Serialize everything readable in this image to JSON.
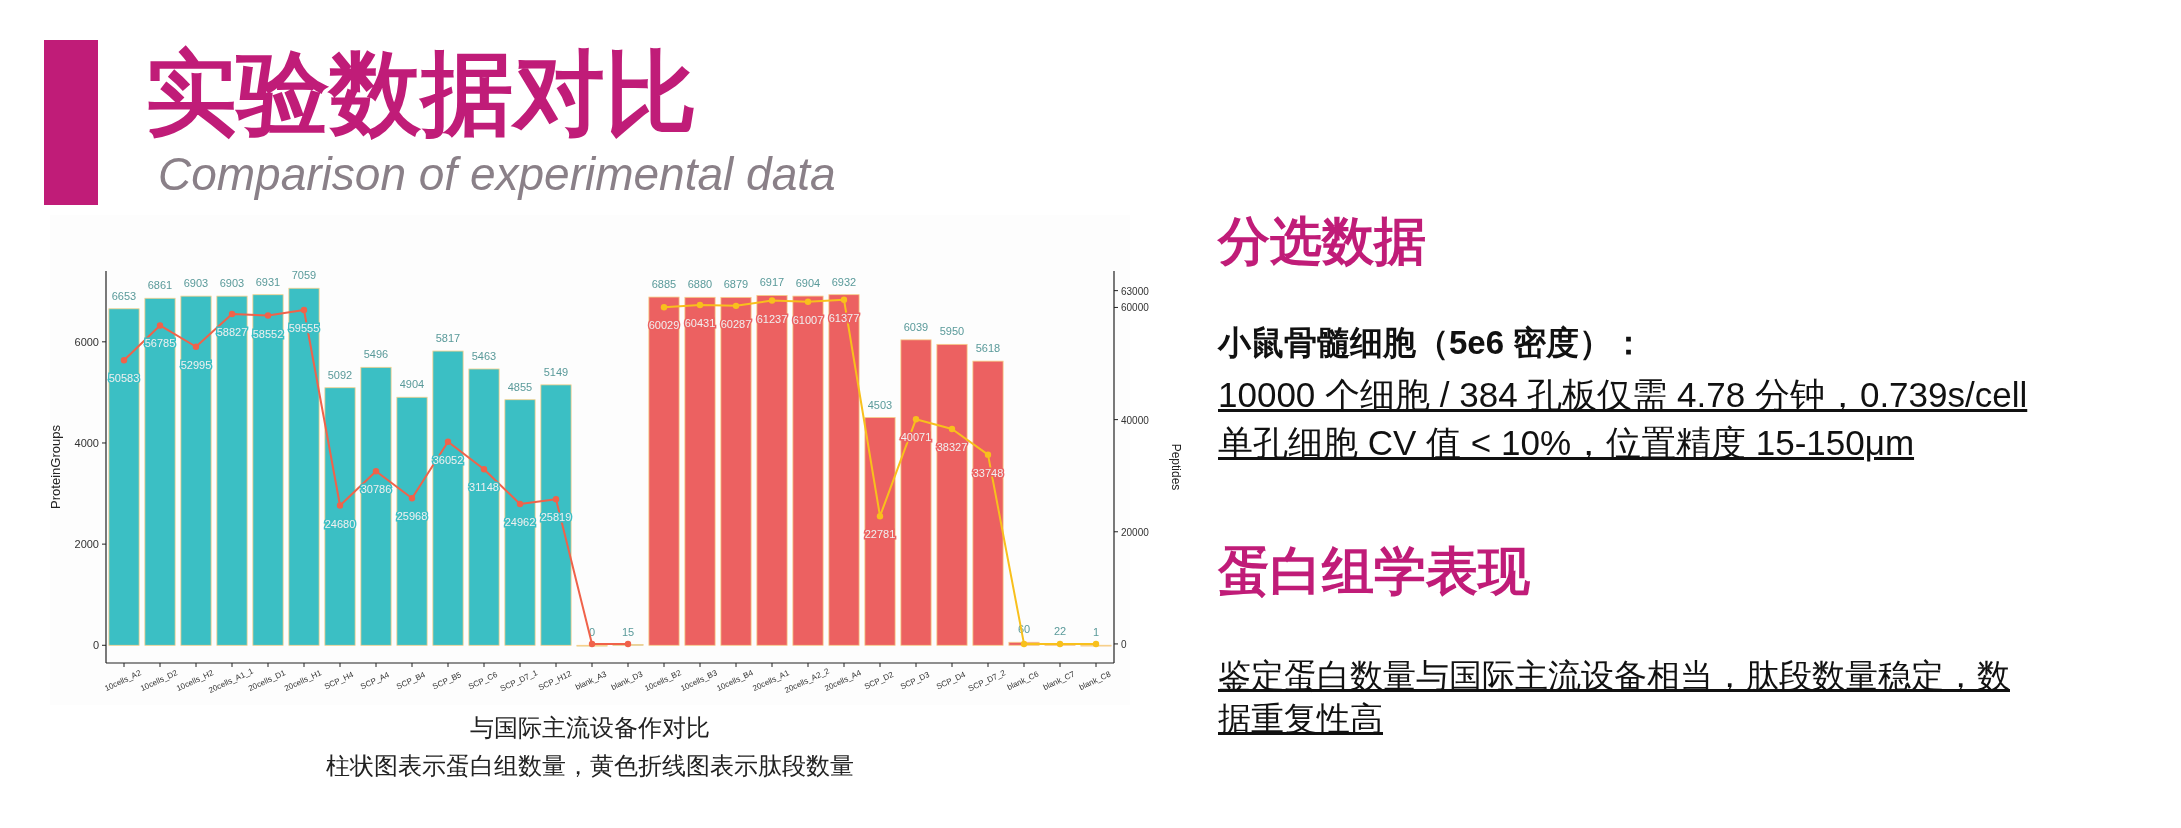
{
  "chart_data": {
    "type": "bar",
    "title": "实验数据对比",
    "subtitle": "Comparison of experimental data",
    "ylabel": "ProteinGroups",
    "y2label": "Peptides",
    "categories": [
      "10cells_A2",
      "10cells_D2",
      "10cells_H2",
      "20cells_A1_1",
      "20cells_D1",
      "20cells_H1",
      "SCP_H4",
      "SCP_A4",
      "SCP_B4",
      "SCP_B5",
      "SCP_C6",
      "SCP_D7_1",
      "SCP_H12",
      "blank_A3",
      "blank_D3",
      "10cells_B2",
      "10cells_B3",
      "10cells_B4",
      "20cells_A1",
      "20cells_A2_2",
      "20cells_A4",
      "SCP_D2",
      "SCP_D3",
      "SCP_D4",
      "SCP_D7_2",
      "blank_C6",
      "blank_C7",
      "blank_C8"
    ],
    "series": [
      {
        "type": "bar",
        "color": "#3bbfc4",
        "values": [
          6653,
          6861,
          6903,
          6903,
          6931,
          7059,
          5092,
          5496,
          4904,
          5817,
          5463,
          4855,
          5149,
          0,
          15,
          null,
          null,
          null,
          null,
          null,
          null,
          null,
          null,
          null,
          null,
          null,
          null,
          null
        ],
        "value_labels": [
          "6653",
          "6861",
          "6903",
          "6903",
          "6931",
          "7059",
          "5092",
          "5496",
          "4904",
          "5817",
          "5463",
          "4855",
          "5149",
          "0",
          "15",
          null,
          null,
          null,
          null,
          null,
          null,
          null,
          null,
          null,
          null,
          null,
          null,
          null
        ]
      },
      {
        "type": "bar",
        "color": "#ec6161",
        "values": [
          null,
          null,
          null,
          null,
          null,
          null,
          null,
          null,
          null,
          null,
          null,
          null,
          null,
          null,
          null,
          6885,
          6880,
          6879,
          6917,
          6904,
          6932,
          4503,
          6039,
          5950,
          5618,
          60,
          22,
          1
        ],
        "value_labels": [
          null,
          null,
          null,
          null,
          null,
          null,
          null,
          null,
          null,
          null,
          null,
          null,
          null,
          null,
          null,
          "6885",
          "6880",
          "6879",
          "6917",
          "6904",
          "6932",
          "4503",
          "6039",
          "5950",
          "5618",
          "60",
          "22",
          "1"
        ]
      },
      {
        "type": "line",
        "axis": "y2",
        "color": "#f0624a",
        "values": [
          50583,
          56785,
          52995,
          58827,
          58552,
          59555,
          24680,
          30786,
          25968,
          36052,
          31148,
          24962,
          25819,
          0,
          0,
          null,
          null,
          null,
          null,
          null,
          null,
          null,
          null,
          null,
          null,
          null,
          null,
          null
        ],
        "value_labels": [
          "50583",
          "56785",
          "52995",
          "58827",
          "58552",
          "59555",
          "24680",
          "30786",
          "25968",
          "36052",
          "31148",
          "24962",
          "25819",
          null,
          null,
          null,
          null,
          null,
          null,
          null,
          null,
          null,
          null,
          null,
          null,
          null,
          null,
          null
        ]
      },
      {
        "type": "line",
        "axis": "y2",
        "color": "#f8c01c",
        "values": [
          null,
          null,
          null,
          null,
          null,
          null,
          null,
          null,
          null,
          null,
          null,
          null,
          null,
          null,
          null,
          60029,
          60431,
          60287,
          61237,
          61007,
          61377,
          22781,
          40071,
          38327,
          33748,
          0,
          0,
          0
        ],
        "value_labels": [
          null,
          null,
          null,
          null,
          null,
          null,
          null,
          null,
          null,
          null,
          null,
          null,
          null,
          null,
          null,
          "60029",
          "60431",
          "60287",
          "61237",
          "61007",
          "61377",
          "22781",
          "40071",
          "38327",
          "33748",
          null,
          null,
          null
        ]
      }
    ],
    "ylim": [
      -350,
      7400
    ],
    "yticks": [
      0,
      2000,
      4000,
      6000
    ],
    "y2lim": [
      -3400,
      66500
    ],
    "y2ticks": [
      0,
      20000,
      40000,
      60000,
      63000
    ],
    "marker": "circle",
    "annotations": [
      "与国际主流设备作对比",
      "柱状图表示蛋白组数量，黄色折线图表示肽段数量",
      "分选数据",
      "小鼠骨髓细胞（5e6 密度）：",
      "10000 个细胞 / 384 孔板仅需 4.78 分钟，0.739s/cell",
      "单孔细胞 CV 值 < 10%，位置精度 15-150μm",
      "蛋白组学表现",
      "鉴定蛋白数量与国际主流设备相当，肽段数量稳定，数据重复性高"
    ]
  }
}
